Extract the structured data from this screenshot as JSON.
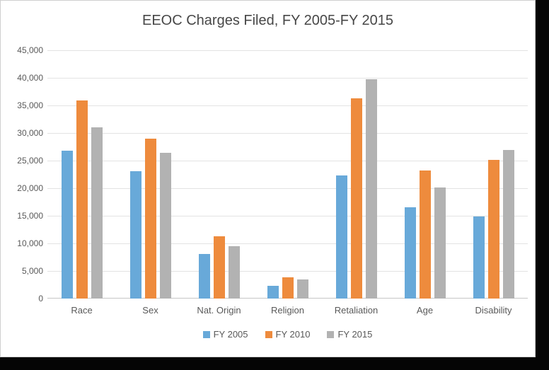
{
  "page": {
    "background": "#ffffff",
    "border_color": "#cfcfcf",
    "shadow_color": "#050505",
    "text_color": "#595959",
    "title_color": "#474747",
    "gridline_color": "#e3e3e3",
    "axis_line_color": "#c6c6c6"
  },
  "chart_data": {
    "type": "bar",
    "title": "EEOC Charges Filed, FY 2005-FY 2015",
    "xlabel": "",
    "ylabel": "",
    "categories": [
      "Race",
      "Sex",
      "Nat. Origin",
      "Religion",
      "Retaliation",
      "Age",
      "Disability"
    ],
    "series": [
      {
        "name": "FY 2005",
        "color": "#68a9d9",
        "values": [
          26740,
          23094,
          8035,
          2340,
          22278,
          16585,
          14893
        ]
      },
      {
        "name": "FY 2010",
        "color": "#ee8b3d",
        "values": [
          35890,
          29029,
          11304,
          3790,
          36258,
          23264,
          25165
        ]
      },
      {
        "name": "FY 2015",
        "color": "#b2b2b2",
        "values": [
          31027,
          26396,
          9438,
          3502,
          39757,
          20144,
          26968
        ]
      }
    ],
    "ylim": [
      0,
      45000
    ],
    "ytick_interval": 5000,
    "ytick_labels": [
      "0",
      "5,000",
      "10,000",
      "15,000",
      "20,000",
      "25,000",
      "30,000",
      "35,000",
      "40,000",
      "45,000"
    ],
    "grid": true,
    "legend_position": "bottom"
  }
}
